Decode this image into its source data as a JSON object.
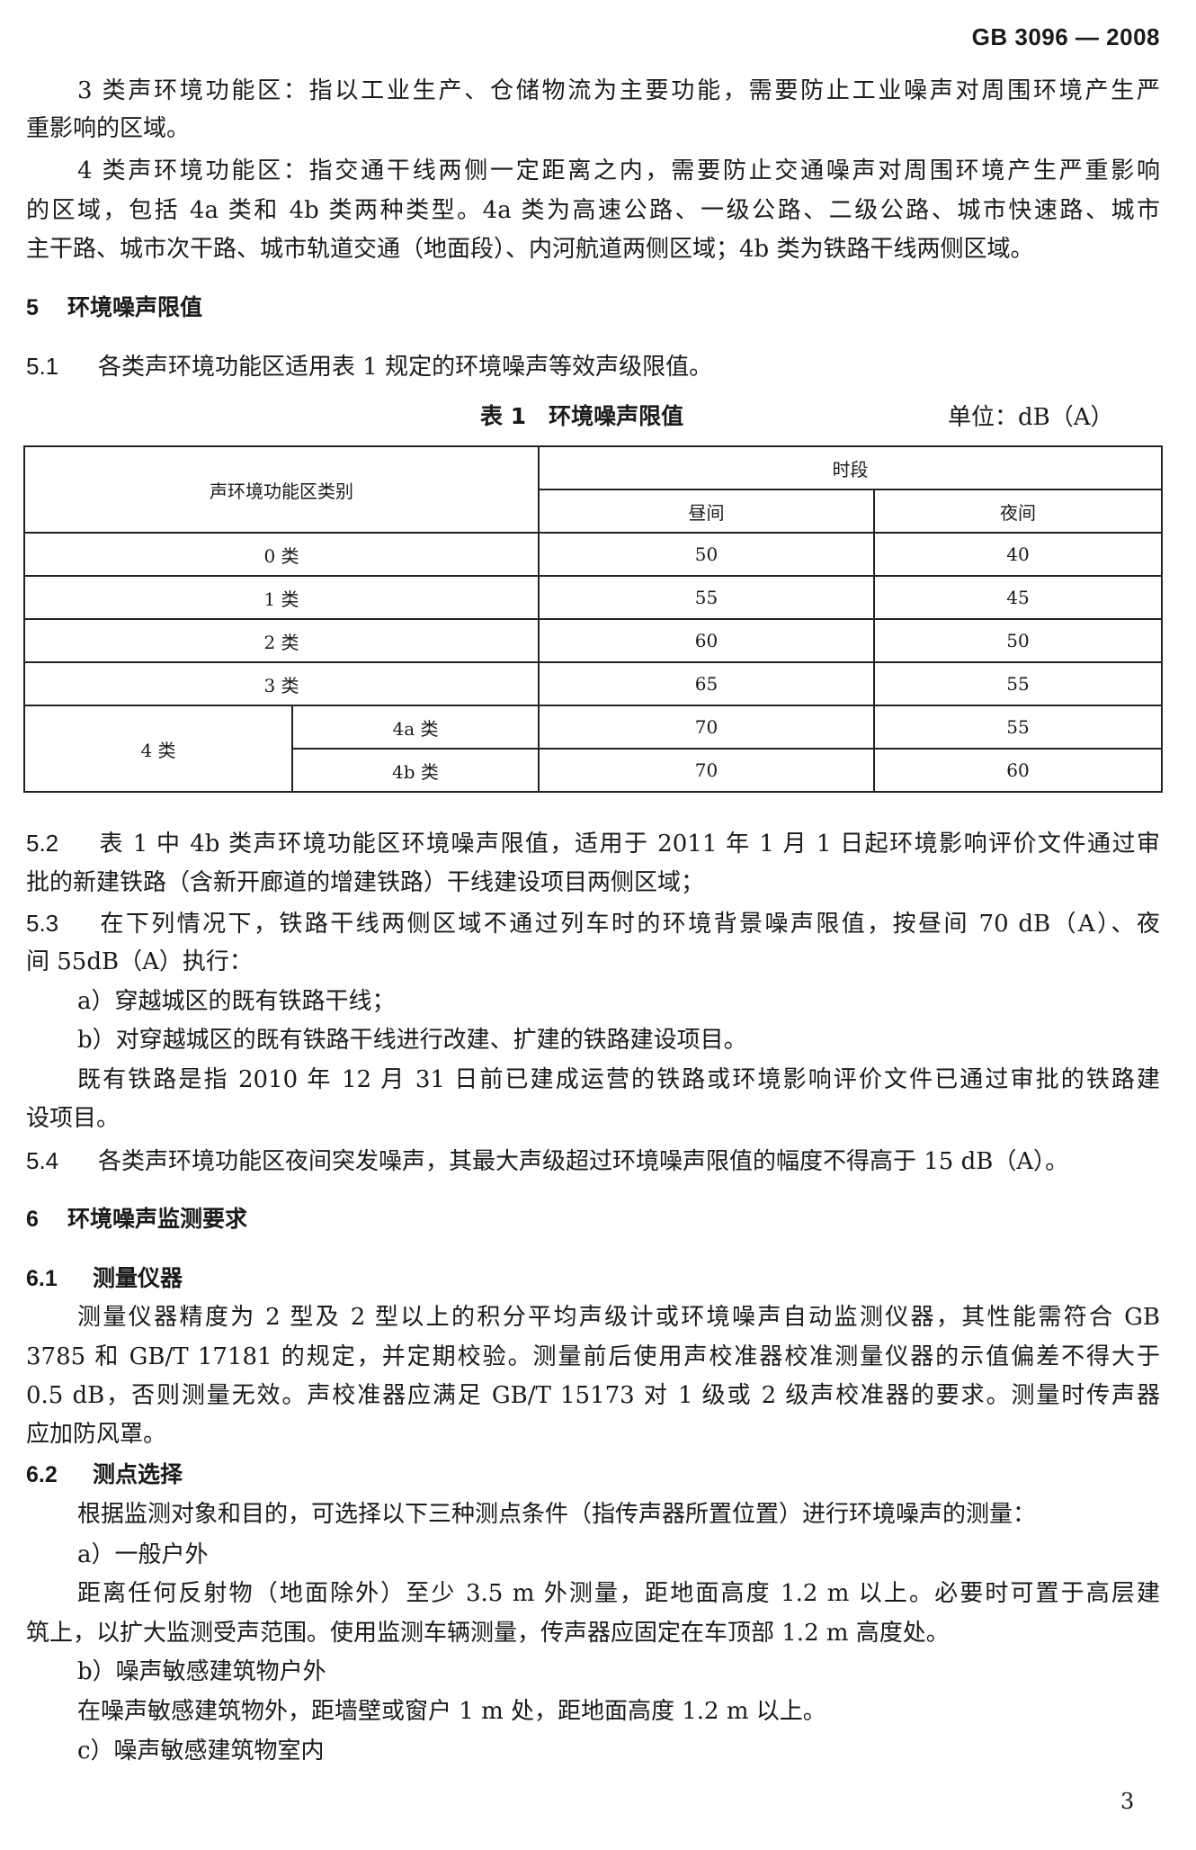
{
  "header": "GB  3096 — 2008",
  "p1": [
    "3 类声环境功能区：指以工业生产、仓储物流为主要功能，需要防止工业噪声对周围环境产生严",
    "重影响的区域。"
  ],
  "p2": [
    "4 类声环境功能区：指交通干线两侧一定距离之内，需要防止交通噪声对周围环境产生严重影响",
    "的区域，包括 4a 类和 4b 类两种类型。4a 类为高速公路、一级公路、二级公路、城市快速路、城市",
    "主干路、城市次干路、城市轨道交通（地面段）、内河航道两侧区域；4b 类为铁路干线两侧区域。"
  ],
  "s5": {
    "num": "5",
    "title": "环境噪声限值"
  },
  "s51": {
    "num": "5.1",
    "text": "各类声环境功能区适用表 1 规定的环境噪声等效声级限值。"
  },
  "table": {
    "caption": "表 1　环境噪声限值",
    "unit": "单位：dB（A）",
    "col_category": "声环境功能区类别",
    "col_period": "时段",
    "col_day": "昼间",
    "col_night": "夜间",
    "rows": [
      {
        "cat": "0 类",
        "day": "50",
        "night": "40"
      },
      {
        "cat": "1 类",
        "day": "55",
        "night": "45"
      },
      {
        "cat": "2 类",
        "day": "60",
        "night": "50"
      },
      {
        "cat": "3 类",
        "day": "65",
        "night": "55"
      }
    ],
    "cat4": "4 类",
    "sub": [
      {
        "cat": "4a 类",
        "day": "70",
        "night": "55"
      },
      {
        "cat": "4b 类",
        "day": "70",
        "night": "60"
      }
    ]
  },
  "s52": {
    "num": "5.2",
    "lines": [
      "表 1 中 4b 类声环境功能区环境噪声限值，适用于 2011 年 1 月 1 日起环境影响评价文件通过审",
      "批的新建铁路（含新开廊道的增建铁路）干线建设项目两侧区域；"
    ]
  },
  "s53": {
    "num": "5.3",
    "lines": [
      "在下列情况下，铁路干线两侧区域不通过列车时的环境背景噪声限值，按昼间 70 dB（A）、夜",
      "间 55dB（A）执行："
    ],
    "a": "a）穿越城区的既有铁路干线；",
    "b": "b）对穿越城区的既有铁路干线进行改建、扩建的铁路建设项目。",
    "note": [
      "既有铁路是指 2010 年 12 月 31 日前已建成运营的铁路或环境影响评价文件已通过审批的铁路建",
      "设项目。"
    ]
  },
  "s54": {
    "num": "5.4",
    "text": "各类声环境功能区夜间突发噪声，其最大声级超过环境噪声限值的幅度不得高于 15 dB（A）。"
  },
  "s6": {
    "num": "6",
    "title": "环境噪声监测要求"
  },
  "s61": {
    "num": "6.1",
    "title": "测量仪器",
    "lines": [
      "测量仪器精度为 2 型及 2 型以上的积分平均声级计或环境噪声自动监测仪器，其性能需符合 GB",
      "3785 和 GB/T 17181 的规定，并定期校验。测量前后使用声校准器校准测量仪器的示值偏差不得大于",
      "0.5 dB，否则测量无效。声校准器应满足 GB/T 15173 对 1 级或 2 级声校准器的要求。测量时传声器",
      "应加防风罩。"
    ]
  },
  "s62": {
    "num": "6.2",
    "title": "测点选择",
    "intro": "根据监测对象和目的，可选择以下三种测点条件（指传声器所置位置）进行环境噪声的测量：",
    "a": "a）一般户外",
    "a_lines": [
      "距离任何反射物（地面除外）至少 3.5 m 外测量，距地面高度 1.2 m 以上。必要时可置于高层建",
      "筑上，以扩大监测受声范围。使用监测车辆测量，传声器应固定在车顶部 1.2 m 高度处。"
    ],
    "b": "b）噪声敏感建筑物户外",
    "b_text": "在噪声敏感建筑物外，距墙壁或窗户 1 m 处，距地面高度 1.2 m 以上。",
    "c": "c）噪声敏感建筑物室内"
  },
  "page_number": "3"
}
